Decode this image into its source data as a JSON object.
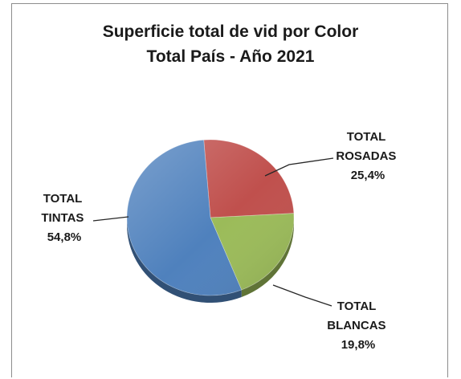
{
  "chart_data": {
    "type": "pie",
    "title": "Superficie total de vid por Color",
    "subtitle": "Total País - Año 2021",
    "slices": [
      {
        "name_line1": "TOTAL",
        "name_line2": "ROSADAS",
        "value": 25.4,
        "label_value": "25,4%",
        "color": "#c0504d"
      },
      {
        "name_line1": "TOTAL",
        "name_line2": "BLANCAS",
        "value": 19.8,
        "label_value": "19,8%",
        "color": "#9bbb59"
      },
      {
        "name_line1": "TOTAL",
        "name_line2": "TINTAS",
        "value": 54.8,
        "label_value": "54,8%",
        "color": "#4f81bd"
      }
    ]
  }
}
